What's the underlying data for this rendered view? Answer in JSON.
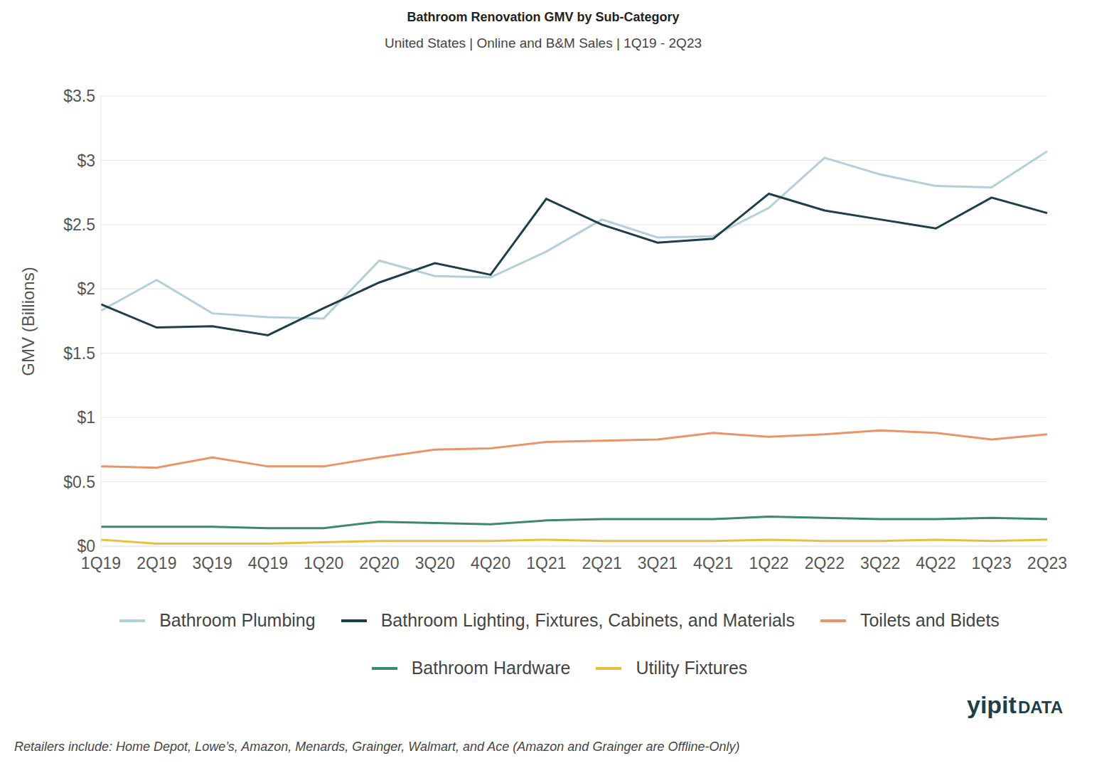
{
  "chart_data": {
    "type": "line",
    "title": "Bathroom Renovation GMV by Sub-Category",
    "subtitle": "United States | Online and B&M Sales | 1Q19 - 2Q23",
    "y_label": "GMV (Billions)",
    "footnote": "Retailers include: Home Depot, Lowe’s, Amazon, Menards, Grainger, Walmart, and Ace (Amazon and Grainger are Offline-Only)",
    "logo": {
      "main": "yipit",
      "suffix": "DATA"
    },
    "categories": [
      "1Q19",
      "2Q19",
      "3Q19",
      "4Q19",
      "1Q20",
      "2Q20",
      "3Q20",
      "4Q20",
      "1Q21",
      "2Q21",
      "3Q21",
      "4Q21",
      "1Q22",
      "2Q22",
      "3Q22",
      "4Q22",
      "1Q23",
      "2Q23"
    ],
    "series": [
      {
        "name": "Bathroom Plumbing",
        "color": "#b3cfd9",
        "values": [
          1.83,
          2.07,
          1.81,
          1.78,
          1.77,
          2.22,
          2.1,
          2.09,
          2.29,
          2.54,
          2.4,
          2.41,
          2.63,
          3.02,
          2.89,
          2.8,
          2.79,
          3.07
        ]
      },
      {
        "name": "Bathroom Lighting, Fixtures, Cabinets, and Materials",
        "color": "#1e3f4a",
        "values": [
          1.88,
          1.7,
          1.71,
          1.64,
          1.85,
          2.05,
          2.2,
          2.11,
          2.7,
          2.5,
          2.36,
          2.39,
          2.74,
          2.61,
          2.54,
          2.47,
          2.71,
          2.59
        ]
      },
      {
        "name": "Toilets and Bidets",
        "color": "#e8956b",
        "values": [
          0.62,
          0.61,
          0.69,
          0.62,
          0.62,
          0.69,
          0.75,
          0.76,
          0.81,
          0.82,
          0.83,
          0.88,
          0.85,
          0.87,
          0.9,
          0.88,
          0.83,
          0.87
        ]
      },
      {
        "name": "Bathroom Hardware",
        "color": "#3d8a6b",
        "values": [
          0.15,
          0.15,
          0.15,
          0.14,
          0.14,
          0.19,
          0.18,
          0.17,
          0.2,
          0.21,
          0.21,
          0.21,
          0.23,
          0.22,
          0.21,
          0.21,
          0.22,
          0.21
        ]
      },
      {
        "name": "Utility Fixtures",
        "color": "#e8c040",
        "values": [
          0.05,
          0.02,
          0.02,
          0.02,
          0.03,
          0.04,
          0.04,
          0.04,
          0.05,
          0.04,
          0.04,
          0.04,
          0.05,
          0.04,
          0.04,
          0.05,
          0.04,
          0.05
        ]
      }
    ],
    "ylim": [
      0,
      3.5
    ],
    "yticks": [
      {
        "value": 0,
        "label": "$0"
      },
      {
        "value": 0.5,
        "label": "$0.5"
      },
      {
        "value": 1,
        "label": "$1"
      },
      {
        "value": 1.5,
        "label": "$1.5"
      },
      {
        "value": 2,
        "label": "$2"
      },
      {
        "value": 2.5,
        "label": "$2.5"
      },
      {
        "value": 3,
        "label": "$3"
      },
      {
        "value": 3.5,
        "label": "$3.5"
      }
    ],
    "grid": true,
    "legend": "bottom"
  }
}
